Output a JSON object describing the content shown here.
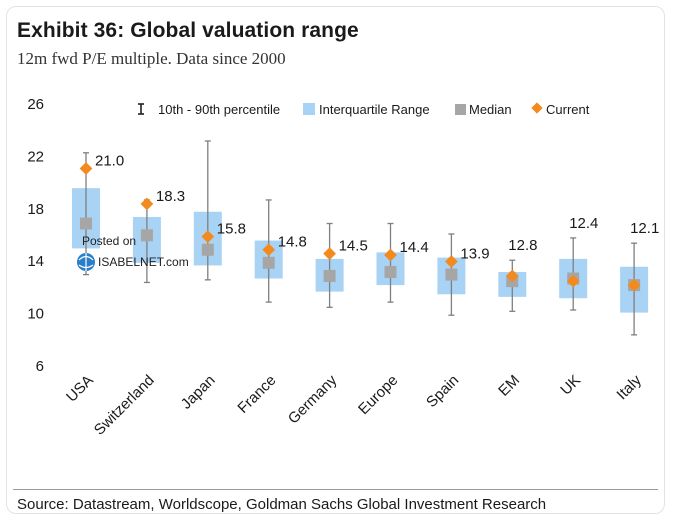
{
  "header": {
    "title": "Exhibit 36: Global valuation range",
    "subtitle": "12m fwd P/E multiple. Data since 2000"
  },
  "footer": {
    "source": "Source: Datastream, Worldscope, Goldman Sachs Global Investment Research"
  },
  "watermark": {
    "line1": "Posted on",
    "line2": "ISABELNET.com"
  },
  "colors": {
    "iqr": "#a9d3f5",
    "median": "#a6a6a6",
    "current": "#f28a1e",
    "whisker": "#7f7f7f",
    "axis_text": "#1a1a1a"
  },
  "chart_data": {
    "type": "box",
    "title": "Exhibit 36: Global valuation range",
    "subtitle": "12m fwd P/E multiple. Data since 2000",
    "ylim": [
      6,
      26
    ],
    "yticks": [
      "6",
      "10",
      "14",
      "18",
      "22",
      "26"
    ],
    "legend": {
      "position": "top",
      "items": [
        "10th - 90th percentile",
        "Interquartile Range",
        "Median",
        "Current"
      ]
    },
    "categories": [
      "USA",
      "Switzerland",
      "Japan",
      "France",
      "Germany",
      "Europe",
      "Spain",
      "EM",
      "UK",
      "Italy"
    ],
    "p10": [
      12.9,
      12.3,
      12.5,
      10.8,
      10.4,
      10.8,
      9.8,
      10.1,
      10.2,
      8.3
    ],
    "p90": [
      22.2,
      18.6,
      23.1,
      18.6,
      16.8,
      16.8,
      16.0,
      14.0,
      15.7,
      15.3
    ],
    "q1": [
      14.9,
      13.8,
      13.6,
      12.6,
      11.6,
      12.1,
      11.4,
      11.2,
      11.1,
      10.0
    ],
    "q3": [
      19.5,
      17.3,
      17.7,
      15.5,
      14.1,
      14.6,
      14.2,
      13.1,
      14.1,
      13.5
    ],
    "median": [
      16.8,
      15.9,
      14.8,
      13.8,
      12.8,
      13.1,
      12.9,
      12.4,
      12.6,
      12.1
    ],
    "current": [
      21.0,
      18.3,
      15.8,
      14.8,
      14.5,
      14.4,
      13.9,
      12.8,
      12.4,
      12.1
    ],
    "current_labels": [
      "21.0",
      "18.3",
      "15.8",
      "14.8",
      "14.5",
      "14.4",
      "13.9",
      "12.8",
      "12.4",
      "12.1"
    ]
  }
}
